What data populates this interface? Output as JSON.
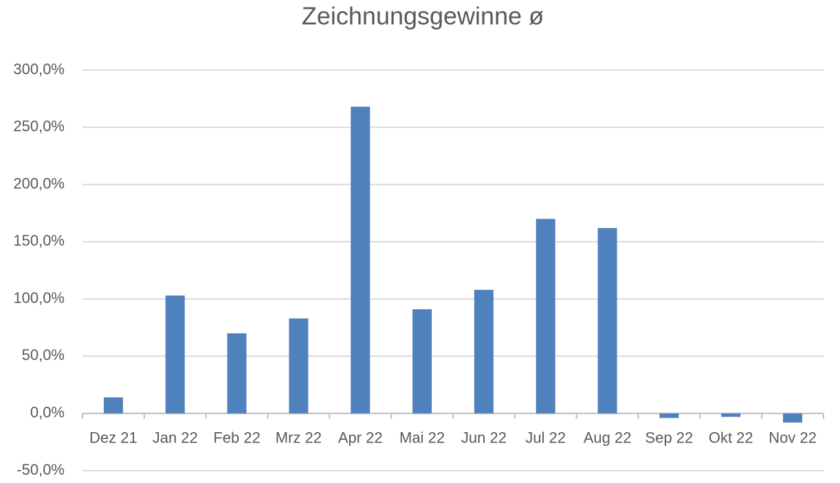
{
  "chart_data": {
    "type": "bar",
    "title": "Zeichnungsgewinne ø",
    "categories": [
      "Dez 21",
      "Jan 22",
      "Feb 22",
      "Mrz 22",
      "Apr 22",
      "Mai 22",
      "Jun 22",
      "Jul 22",
      "Aug 22",
      "Sep 22",
      "Okt 22",
      "Nov 22"
    ],
    "values": [
      14,
      103,
      70,
      83,
      268,
      91,
      108,
      170,
      162,
      -4,
      -3,
      -8
    ],
    "color": "#4f81bd",
    "ylim": [
      -50,
      300
    ],
    "yticks": [
      {
        "value": -50,
        "label": "-50,0%"
      },
      {
        "value": 0,
        "label": "0,0%"
      },
      {
        "value": 50,
        "label": "50,0%"
      },
      {
        "value": 100,
        "label": "100,0%"
      },
      {
        "value": 150,
        "label": "150,0%"
      },
      {
        "value": 200,
        "label": "200,0%"
      },
      {
        "value": 250,
        "label": "250,0%"
      },
      {
        "value": 300,
        "label": "300,0%"
      }
    ],
    "grid": true
  }
}
